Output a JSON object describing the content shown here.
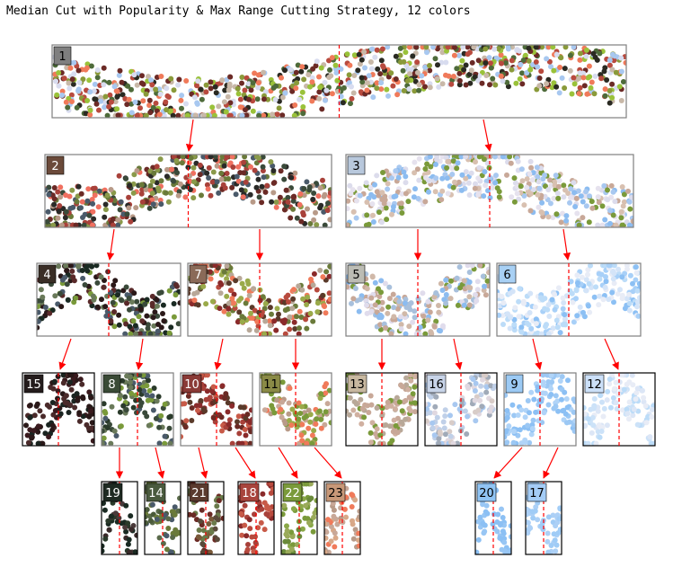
{
  "title": "Median Cut with Popularity & Max Range Cutting Strategy, 12 colors",
  "nodes": [
    {
      "label": "1",
      "color": "#7f7f7f",
      "label_text_color": "#000000",
      "palette": [
        "#2a2a22",
        "#6b2a26",
        "#b84a3e",
        "#f07a5a",
        "#4e6b3a",
        "#8a9a3a",
        "#c8b8a8",
        "#a8c8f0",
        "#d8dcef",
        "#9ac23a"
      ],
      "children": [
        "2",
        "3"
      ]
    },
    {
      "label": "2",
      "color": "#6b4a3a",
      "label_text_color": "#ffffff",
      "palette": [
        "#2a2a28",
        "#3a4a3a",
        "#6b2a26",
        "#a8413a",
        "#6a7a3a",
        "#8a9a4a",
        "#b89a88",
        "#f07060",
        "#4a5a6a"
      ],
      "children": [
        "4",
        "7"
      ]
    },
    {
      "label": "3",
      "color": "#b8c8dc",
      "label_text_color": "#000000",
      "palette": [
        "#c8a898",
        "#d8c0b0",
        "#a8c8f0",
        "#8cbcf0",
        "#dcdcec",
        "#7a9a3a",
        "#e6e2ee"
      ],
      "children": [
        "5",
        "6"
      ]
    },
    {
      "label": "4",
      "color": "#3a2e26",
      "label_text_color": "#ffffff",
      "palette": [
        "#2a1818",
        "#1a2a22",
        "#3a4a3a",
        "#5a2a2a",
        "#6a7a5a",
        "#4a5a6a",
        "#7a9a3a"
      ],
      "children": [
        "15",
        "8"
      ]
    },
    {
      "label": "7",
      "color": "#8a6a58",
      "label_text_color": "#ffffff",
      "palette": [
        "#b84a3e",
        "#f07a5a",
        "#8a2a2a",
        "#6a7a3a",
        "#9aaa4a",
        "#b8a898",
        "#5a3a2a"
      ],
      "children": [
        "10",
        "11"
      ]
    },
    {
      "label": "5",
      "color": "#bcbcb4",
      "label_text_color": "#000000",
      "palette": [
        "#c8a898",
        "#d0b8a8",
        "#a8c0dc",
        "#8cbcf0",
        "#e0dcec",
        "#7a9a3a"
      ],
      "children": [
        "13",
        "16"
      ]
    },
    {
      "label": "6",
      "color": "#a8d0f4",
      "label_text_color": "#000000",
      "palette": [
        "#8cc0f4",
        "#a8d0f8",
        "#bcdcf8",
        "#d4e4f8",
        "#e8ecf6"
      ],
      "children": [
        "9",
        "12"
      ]
    },
    {
      "label": "15",
      "color": "#241c1c",
      "label_text_color": "#ffffff",
      "palette": [
        "#2a1818",
        "#3a1a1e",
        "#1a2420",
        "#4a2a2a"
      ],
      "children": []
    },
    {
      "label": "8",
      "color": "#3a4a36",
      "label_text_color": "#ffffff",
      "palette": [
        "#2a3a2a",
        "#3a4a3a",
        "#4a5a6a",
        "#6a7a5a",
        "#7a9a3a"
      ],
      "children": [
        "19",
        "14"
      ]
    },
    {
      "label": "10",
      "color": "#8a3a36",
      "label_text_color": "#ffffff",
      "palette": [
        "#8a2a2a",
        "#a8413a",
        "#c85a48",
        "#6a2a24",
        "#5a3a2a"
      ],
      "children": [
        "21",
        "18"
      ]
    },
    {
      "label": "11",
      "color": "#8a8a46",
      "label_text_color": "#000000",
      "palette": [
        "#7a9a3a",
        "#9aaa4a",
        "#b89a88",
        "#f07a5a",
        "#c8a898"
      ],
      "children": [
        "22",
        "23"
      ]
    },
    {
      "label": "13",
      "color": "#c8b8a0",
      "label_text_color": "#000000",
      "palette": [
        "#c8a898",
        "#d0b0a0",
        "#b8a898",
        "#7a9a3a"
      ],
      "children": []
    },
    {
      "label": "16",
      "color": "#c8d4e8",
      "label_text_color": "#000000",
      "palette": [
        "#a8c8f0",
        "#c0d0e8",
        "#d8ccc8",
        "#a0aab8",
        "#e0d8e0"
      ],
      "children": []
    },
    {
      "label": "9",
      "color": "#9ccaf4",
      "label_text_color": "#000000",
      "palette": [
        "#8cc0f4",
        "#9cc8f4",
        "#b0d4f8"
      ],
      "children": [
        "20",
        "17"
      ]
    },
    {
      "label": "12",
      "color": "#cce0f8",
      "label_text_color": "#000000",
      "palette": [
        "#bcdcf8",
        "#cce2f8",
        "#dce6f6",
        "#e8ecf6"
      ],
      "children": []
    },
    {
      "label": "19",
      "color": "#1e2a22",
      "label_text_color": "#ffffff",
      "palette": [
        "#1a2a22",
        "#2a3a2a",
        "#3a2a2a",
        "#4a3a3a"
      ],
      "children": []
    },
    {
      "label": "14",
      "color": "#4a5a3e",
      "label_text_color": "#ffffff",
      "palette": [
        "#4a5a3a",
        "#6a7a3a",
        "#5a6a4a",
        "#4a5a6a"
      ],
      "children": []
    },
    {
      "label": "21",
      "color": "#5a3a2e",
      "label_text_color": "#ffffff",
      "palette": [
        "#6a2a24",
        "#5a4a3a",
        "#7a5a3a",
        "#6a7a4a"
      ],
      "children": []
    },
    {
      "label": "18",
      "color": "#a8443c",
      "label_text_color": "#ffffff",
      "palette": [
        "#a8413a",
        "#c85a48",
        "#8a2a2a",
        "#b84a3e"
      ],
      "children": []
    },
    {
      "label": "22",
      "color": "#7a9a3a",
      "label_text_color": "#ffffff",
      "palette": [
        "#7a9a3a",
        "#8aa848",
        "#6a8a3a",
        "#9aaa5a"
      ],
      "children": []
    },
    {
      "label": "23",
      "color": "#c89878",
      "label_text_color": "#000000",
      "palette": [
        "#f07a5a",
        "#c8a898",
        "#b89a88",
        "#d8a888"
      ],
      "children": []
    },
    {
      "label": "20",
      "color": "#90c4f4",
      "label_text_color": "#000000",
      "palette": [
        "#8cc0f4",
        "#98c6f4"
      ],
      "children": []
    },
    {
      "label": "17",
      "color": "#a4ccf6",
      "label_text_color": "#000000",
      "palette": [
        "#a0ccf6",
        "#acd0f6"
      ],
      "children": []
    }
  ],
  "styles": {
    "split_line_color": "#ff0000",
    "arrow_color": "#ff0000",
    "box_border_color": "#7f7f7f"
  }
}
